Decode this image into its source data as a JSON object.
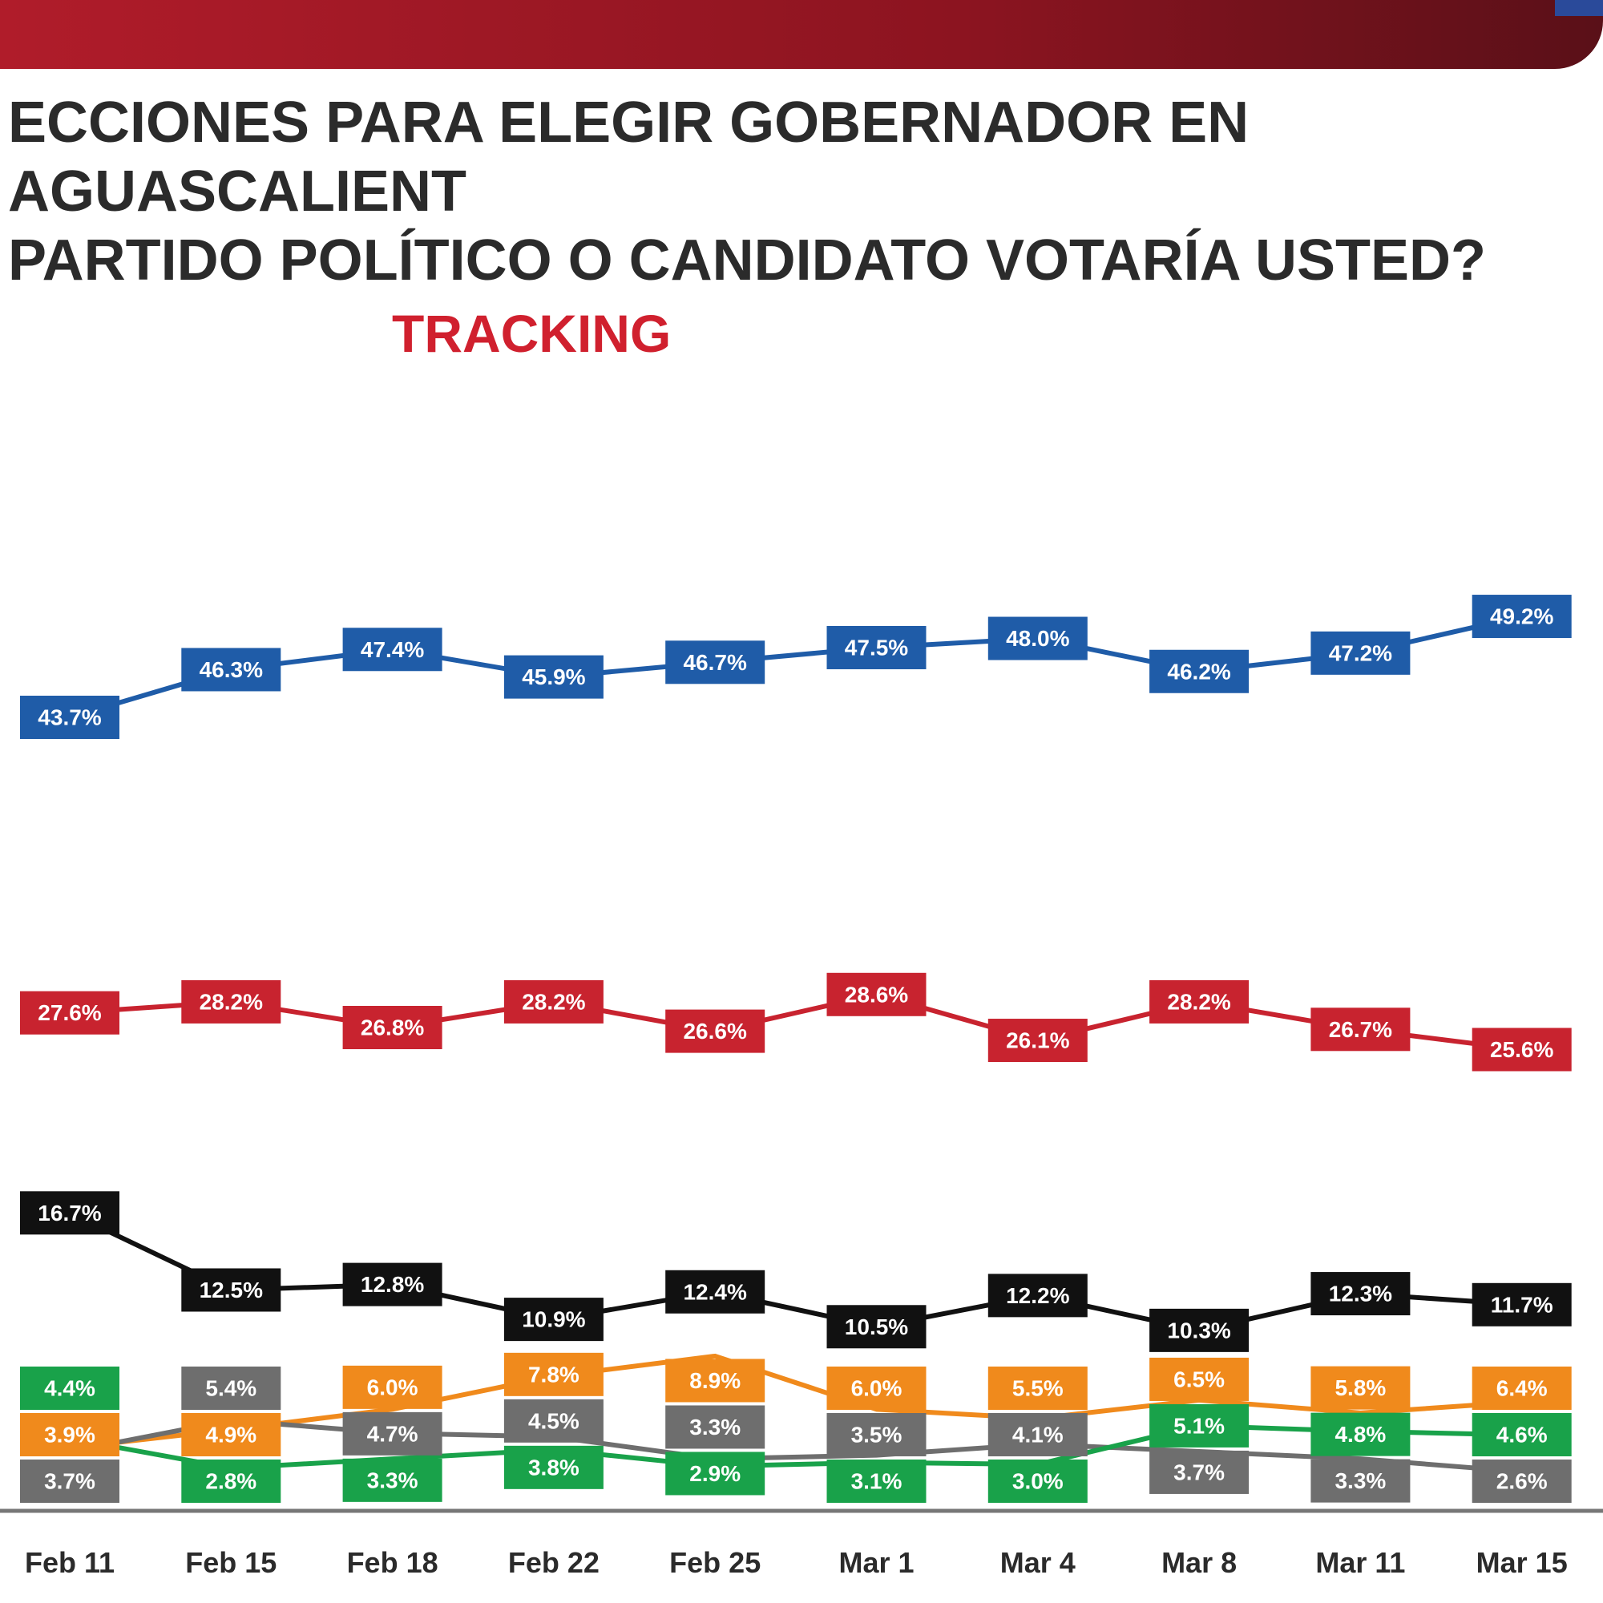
{
  "header": {
    "title_line1": "ECCIONES PARA ELEGIR GOBERNADOR EN AGUASCALIENT",
    "title_line2": "PARTIDO POLÍTICO O CANDIDATO VOTARÍA USTED?",
    "subtitle": "TRACKING"
  },
  "chart_data": {
    "type": "line",
    "title": "TRACKING",
    "xlabel": "",
    "ylabel": "",
    "ylim": [
      0,
      55
    ],
    "grid": false,
    "categories": [
      "Feb 11",
      "Feb 15",
      "Feb 18",
      "Feb 22",
      "Feb 25",
      "Mar 1",
      "Mar 4",
      "Mar 8",
      "Mar 11",
      "Mar 15"
    ],
    "series": [
      {
        "name": "blue",
        "color": "#1f5ca8",
        "values": [
          43.7,
          46.3,
          47.4,
          45.9,
          46.7,
          47.5,
          48.0,
          46.2,
          47.2,
          49.2
        ]
      },
      {
        "name": "red",
        "color": "#c8232f",
        "values": [
          27.6,
          28.2,
          26.8,
          28.2,
          26.6,
          28.6,
          26.1,
          28.2,
          26.7,
          25.6
        ]
      },
      {
        "name": "black",
        "color": "#111111",
        "values": [
          16.7,
          12.5,
          12.8,
          10.9,
          12.4,
          10.5,
          12.2,
          10.3,
          12.3,
          11.7
        ]
      },
      {
        "name": "orange",
        "color": "#f08a1c",
        "values": [
          3.9,
          4.9,
          6.0,
          7.8,
          8.9,
          6.0,
          5.5,
          6.5,
          5.8,
          6.4
        ]
      },
      {
        "name": "gray",
        "color": "#6e6e6e",
        "values": [
          3.7,
          5.4,
          4.7,
          4.5,
          3.3,
          3.5,
          4.1,
          3.7,
          3.3,
          2.6
        ]
      },
      {
        "name": "green",
        "color": "#19a24a",
        "values": [
          4.4,
          2.8,
          3.3,
          3.8,
          2.9,
          3.1,
          3.0,
          5.1,
          4.8,
          4.6
        ]
      }
    ]
  }
}
